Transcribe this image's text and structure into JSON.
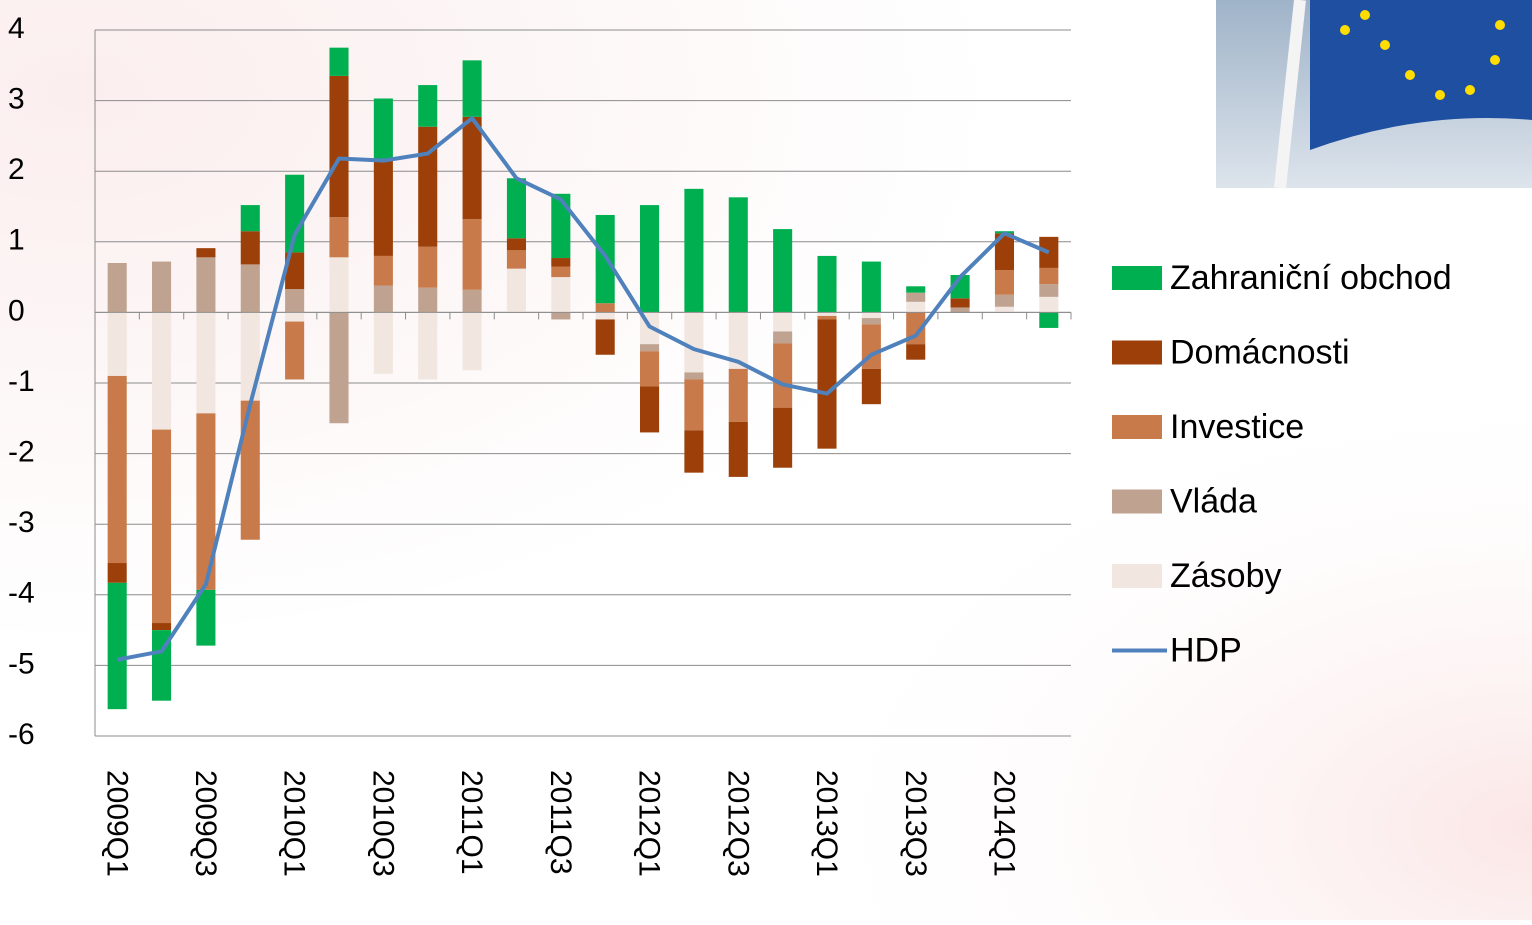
{
  "chart_data": {
    "type": "stacked-bar-line",
    "categories": [
      "2009Q1",
      null,
      "2009Q3",
      null,
      "2010Q1",
      null,
      "2010Q3",
      null,
      "2011Q1",
      null,
      "2011Q3",
      null,
      "2012Q1",
      null,
      "2012Q3",
      null,
      "2013Q1",
      null,
      "2013Q3",
      null,
      "2014Q1",
      null
    ],
    "series": [
      {
        "name": "Zahraniční obchod",
        "color": "#00b050",
        "values": [
          -1.79,
          -1.0,
          -0.79,
          0.37,
          1.1,
          0.4,
          0.88,
          0.59,
          0.8,
          0.85,
          0.91,
          1.25,
          1.52,
          1.75,
          1.63,
          1.18,
          0.8,
          0.72,
          0.09,
          0.33,
          0.03,
          -0.22
        ]
      },
      {
        "name": "Domácnosti",
        "color": "#9c3f08",
        "values": [
          -0.28,
          -0.1,
          0.13,
          0.47,
          0.52,
          2.0,
          1.35,
          1.7,
          1.45,
          0.17,
          0.12,
          -0.5,
          -0.65,
          -0.6,
          -0.78,
          -0.85,
          -1.83,
          -0.5,
          -0.22,
          0.13,
          0.52,
          0.44
        ]
      },
      {
        "name": "Investice",
        "color": "#c87a4a",
        "values": [
          -2.65,
          -2.74,
          -2.5,
          -1.97,
          -0.82,
          0.57,
          0.42,
          0.58,
          1.0,
          0.26,
          0.15,
          0.13,
          -0.5,
          -0.72,
          -0.75,
          -0.91,
          -0.05,
          -0.63,
          -0.45,
          0,
          0.35,
          0.23
        ]
      },
      {
        "name": "Vláda",
        "color": "#bfa390",
        "values": [
          0.7,
          0.72,
          0.78,
          0.68,
          0.33,
          -1.57,
          0.38,
          0.35,
          0.32,
          0,
          -0.1,
          0,
          -0.1,
          -0.1,
          0,
          -0.17,
          0,
          -0.09,
          0.13,
          0.07,
          0.17,
          0.18
        ]
      },
      {
        "name": "Zásoby",
        "color": "#f2e6e0",
        "values": [
          -0.9,
          -1.66,
          -1.43,
          -1.25,
          -0.13,
          0.78,
          -0.87,
          -0.95,
          -0.82,
          0.62,
          0.5,
          -0.1,
          -0.45,
          -0.85,
          -0.8,
          -0.27,
          -0.05,
          -0.08,
          0.15,
          0,
          0.08,
          0.22
        ]
      }
    ],
    "line": {
      "name": "HDP",
      "color": "#4f81bd",
      "values": [
        -4.92,
        -4.8,
        -3.85,
        -1.3,
        1.1,
        2.18,
        2.15,
        2.25,
        2.75,
        1.9,
        1.6,
        0.8,
        -0.2,
        -0.52,
        -0.7,
        -1.02,
        -1.15,
        -0.6,
        -0.33,
        0.5,
        1.12,
        0.85
      ]
    },
    "ylim": [
      -6,
      4
    ],
    "yticks": [
      -6,
      -5,
      -4,
      -3,
      -2,
      -1,
      0,
      1,
      2,
      3,
      4
    ],
    "grid": true
  }
}
